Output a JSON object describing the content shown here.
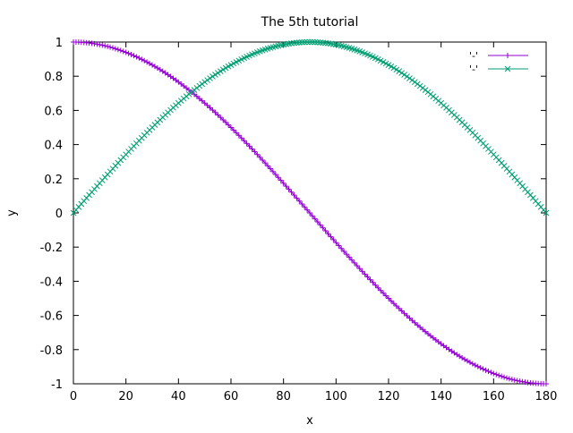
{
  "chart_data": {
    "type": "line",
    "title": "The 5th tutorial",
    "xlabel": "x",
    "ylabel": "y",
    "xlim": [
      0,
      180
    ],
    "ylim": [
      -1,
      1
    ],
    "xticks": [
      "0",
      "20",
      "40",
      "60",
      "80",
      "100",
      "120",
      "140",
      "160",
      "180"
    ],
    "yticks": [
      "-1",
      "-0.8",
      "-0.6",
      "-0.4",
      "-0.2",
      "0",
      "0.2",
      "0.4",
      "0.6",
      "0.8",
      "1"
    ],
    "grid": false,
    "legend_position": "top-right",
    "x_step": 1,
    "series": [
      {
        "name": "'-'",
        "function": "cos(x degrees)",
        "color": "#9400d3",
        "marker": "+"
      },
      {
        "name": "'-'",
        "function": "sin(x degrees)",
        "color": "#009e73",
        "marker": "x"
      }
    ]
  }
}
